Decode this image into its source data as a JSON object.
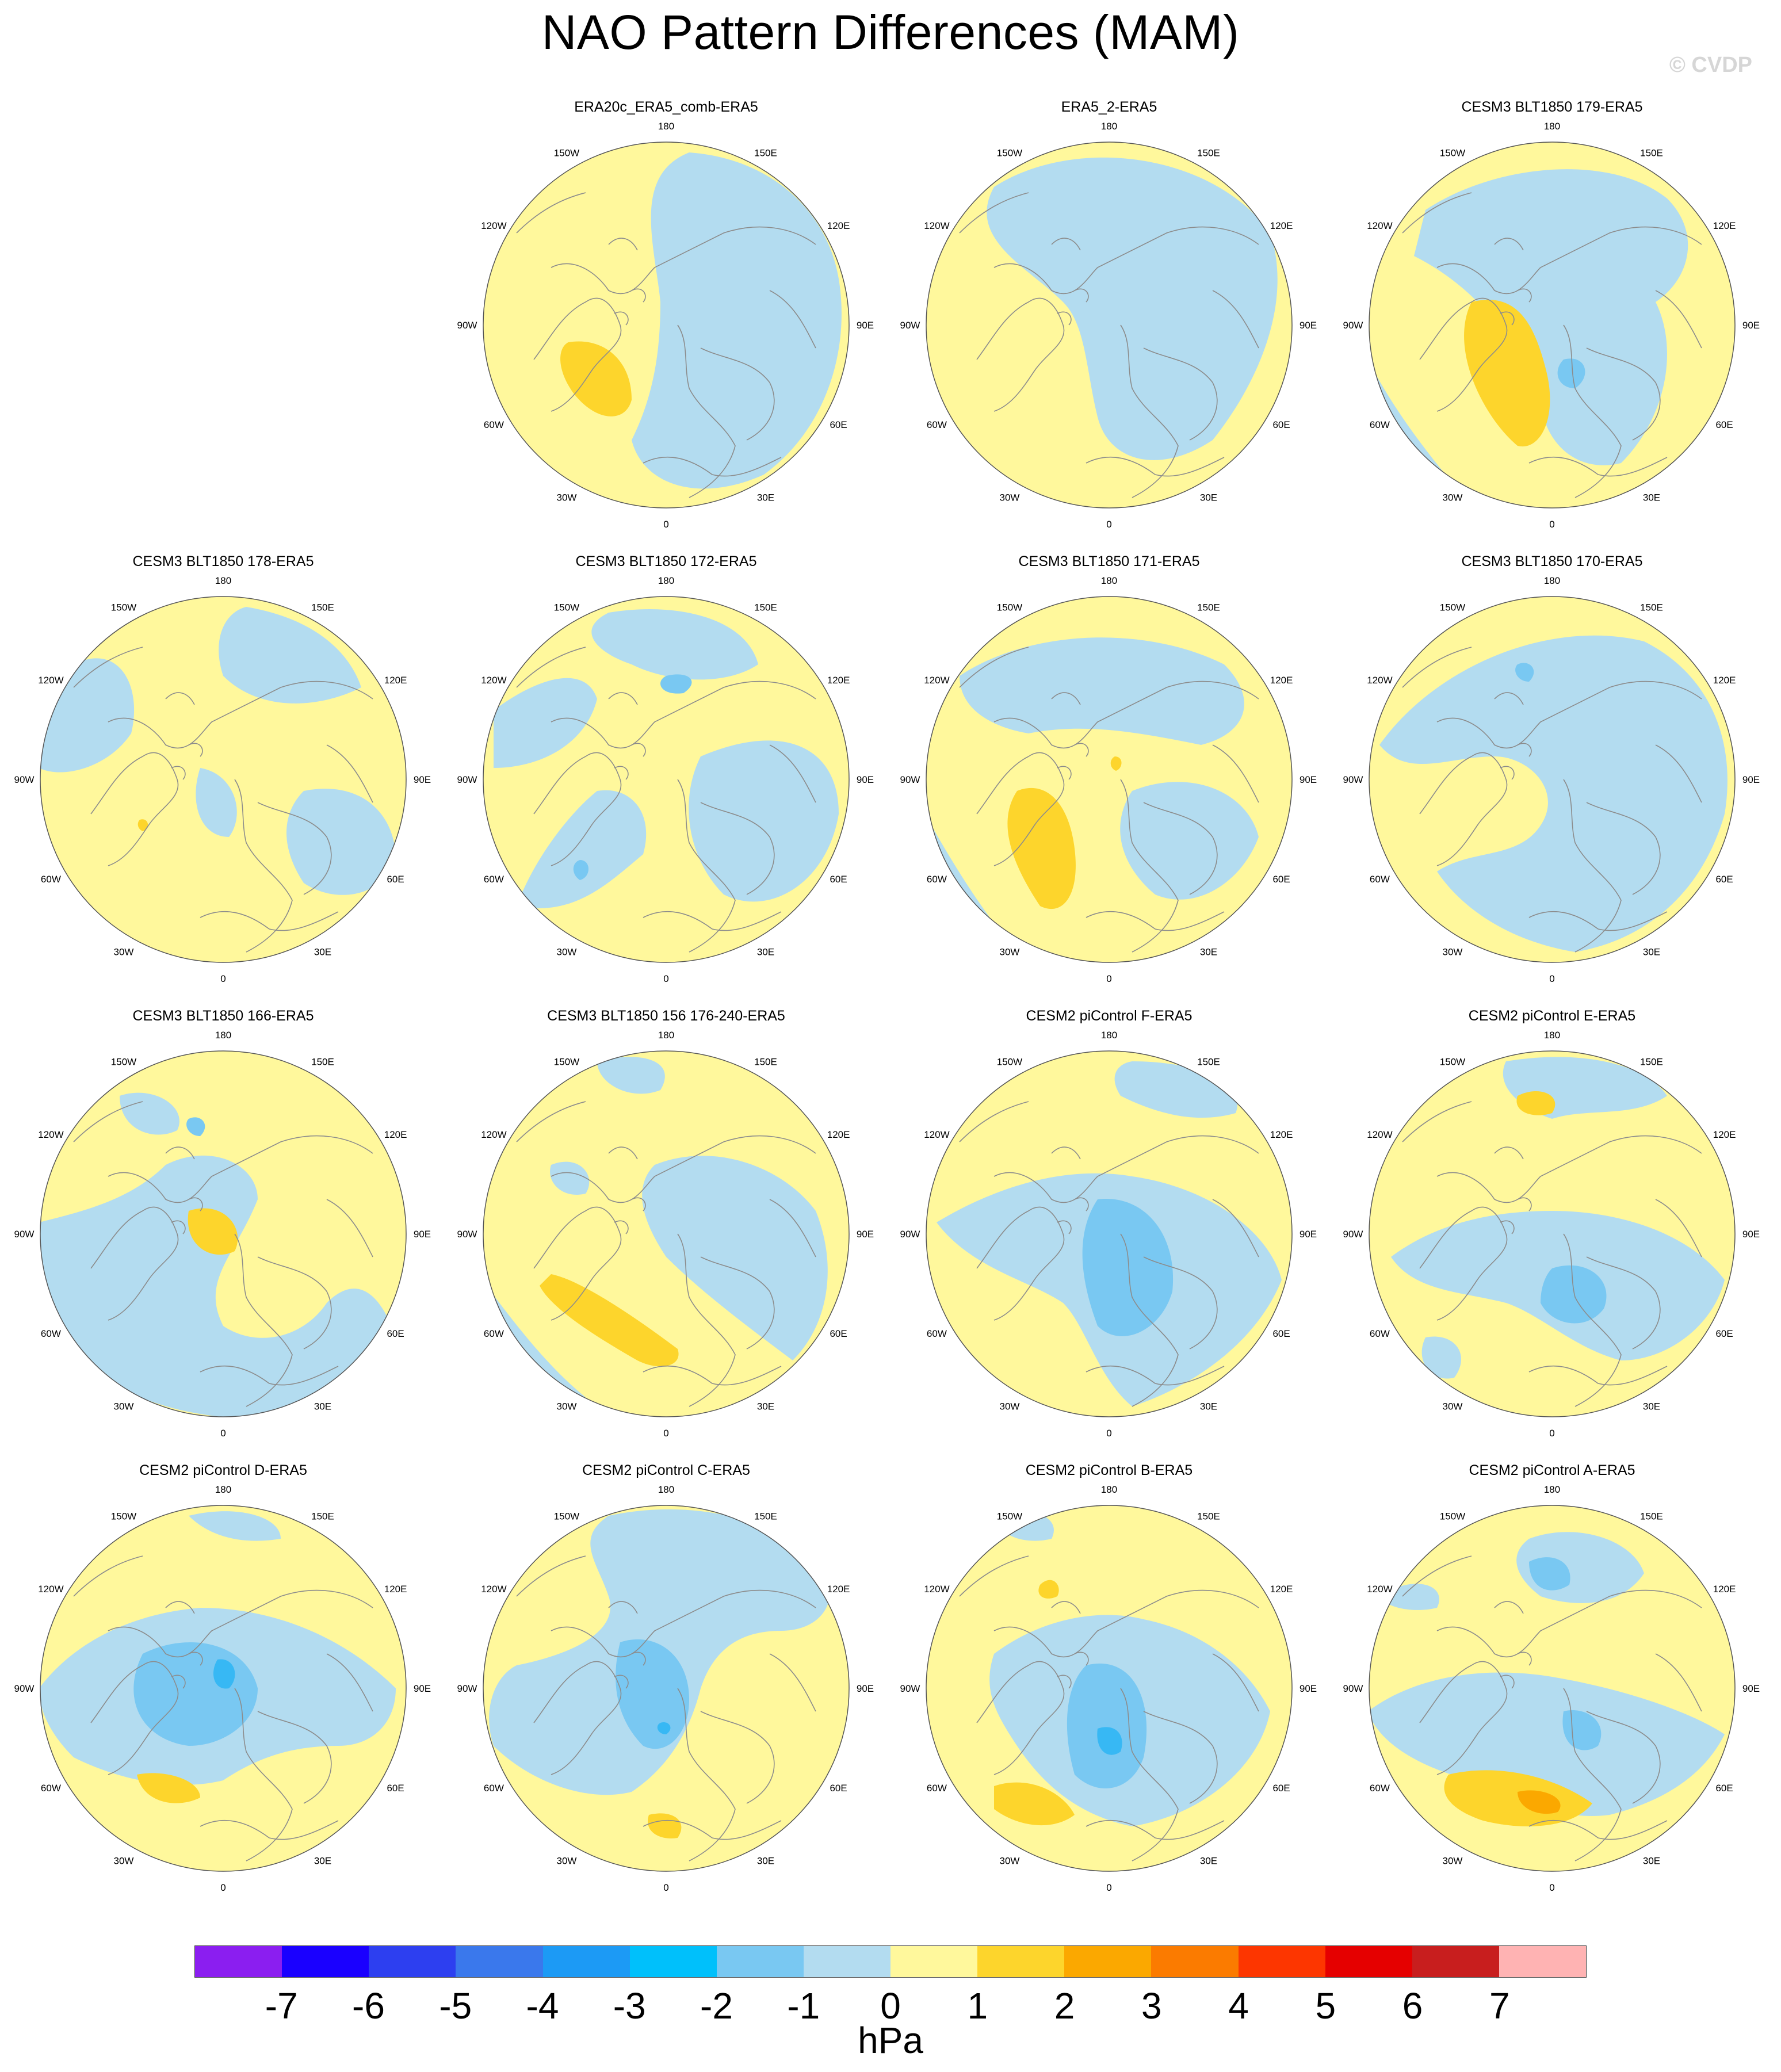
{
  "title": "NAO Pattern Differences (MAM)",
  "credit": "© CVDP",
  "colors": {
    "neg1": "#b3dcf0",
    "neg2": "#79c8f2",
    "neg3": "#37b8f4",
    "pos1": "#fff89c",
    "pos2": "#fdd52c",
    "pos3": "#fba800",
    "coast": "#8c8c8c"
  },
  "longitude_labels": [
    "180",
    "150E",
    "120E",
    "90E",
    "60E",
    "30E",
    "0",
    "30W",
    "60W",
    "90W",
    "120W",
    "150W"
  ],
  "panels": [
    {
      "title": "ERA20c_ERA5_comb-ERA5",
      "row": 0,
      "col": 1
    },
    {
      "title": "ERA5_2-ERA5",
      "row": 0,
      "col": 2
    },
    {
      "title": "CESM3 BLT1850 179-ERA5",
      "row": 0,
      "col": 3
    },
    {
      "title": "CESM3 BLT1850 178-ERA5",
      "row": 1,
      "col": 0
    },
    {
      "title": "CESM3 BLT1850 172-ERA5",
      "row": 1,
      "col": 1
    },
    {
      "title": "CESM3 BLT1850 171-ERA5",
      "row": 1,
      "col": 2
    },
    {
      "title": "CESM3 BLT1850 170-ERA5",
      "row": 1,
      "col": 3
    },
    {
      "title": "CESM3 BLT1850 166-ERA5",
      "row": 2,
      "col": 0
    },
    {
      "title": "CESM3 BLT1850 156 176-240-ERA5",
      "row": 2,
      "col": 1
    },
    {
      "title": "CESM2 piControl F-ERA5",
      "row": 2,
      "col": 2
    },
    {
      "title": "CESM2 piControl E-ERA5",
      "row": 2,
      "col": 3
    },
    {
      "title": "CESM2 piControl D-ERA5",
      "row": 3,
      "col": 0
    },
    {
      "title": "CESM2 piControl C-ERA5",
      "row": 3,
      "col": 1
    },
    {
      "title": "CESM2 piControl B-ERA5",
      "row": 3,
      "col": 2
    },
    {
      "title": "CESM2 piControl A-ERA5",
      "row": 3,
      "col": 3
    }
  ],
  "colorbar": {
    "units": "hPa",
    "colors": [
      "#8b1ef0",
      "#1a00ff",
      "#2d3ff0",
      "#3a78ec",
      "#1c9af5",
      "#00c0fb",
      "#79c8f2",
      "#b3dcf0",
      "#fff89c",
      "#fdd52c",
      "#fba800",
      "#fb7b00",
      "#fd3600",
      "#e50000",
      "#c81e1e",
      "#ffb3b3"
    ],
    "labels": [
      "-7",
      "-6",
      "-5",
      "-4",
      "-3",
      "-2",
      "-1",
      "0",
      "1",
      "2",
      "3",
      "4",
      "5",
      "6",
      "7"
    ]
  }
}
